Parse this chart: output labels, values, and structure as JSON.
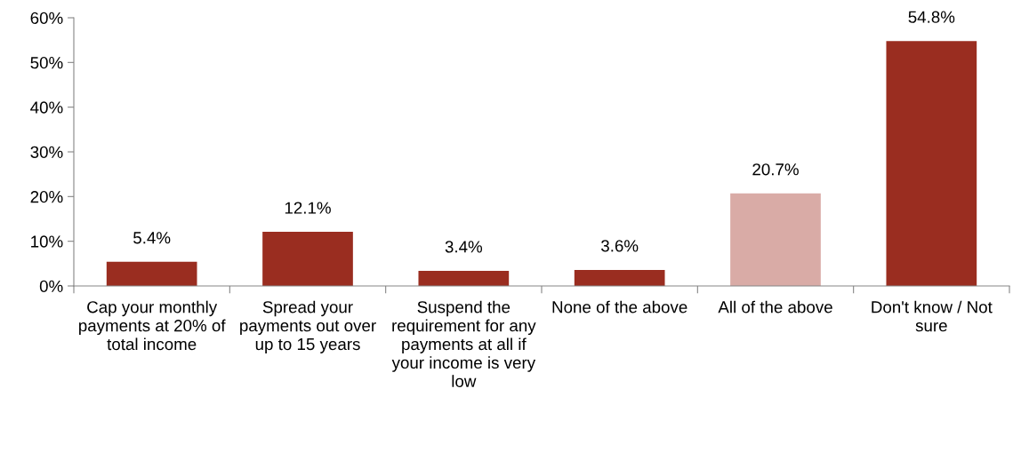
{
  "chart_data": {
    "type": "bar",
    "categories": [
      "Cap your monthly payments at 20% of total income",
      "Spread your payments out over up to 15 years",
      "Suspend the requirement for any payments at all if your income is very low",
      "None of the above",
      "All of the above",
      "Don't know / Not sure"
    ],
    "values": [
      5.4,
      12.1,
      3.4,
      3.6,
      20.7,
      54.8
    ],
    "colors": [
      "#9a2d20",
      "#9a2d20",
      "#9a2d20",
      "#9a2d20",
      "#d9aba6",
      "#9a2d20"
    ],
    "value_labels": [
      "5.4%",
      "12.1%",
      "3.4%",
      "3.6%",
      "20.7%",
      "54.8%"
    ],
    "ylim": [
      0,
      60
    ],
    "yticks": [
      {
        "value": 0,
        "label": "0%"
      },
      {
        "value": 10,
        "label": "10%"
      },
      {
        "value": 20,
        "label": "20%"
      },
      {
        "value": 30,
        "label": "30%"
      },
      {
        "value": 40,
        "label": "40%"
      },
      {
        "value": 50,
        "label": "50%"
      },
      {
        "value": 60,
        "label": "60%"
      }
    ],
    "grid": false,
    "legend": false
  }
}
